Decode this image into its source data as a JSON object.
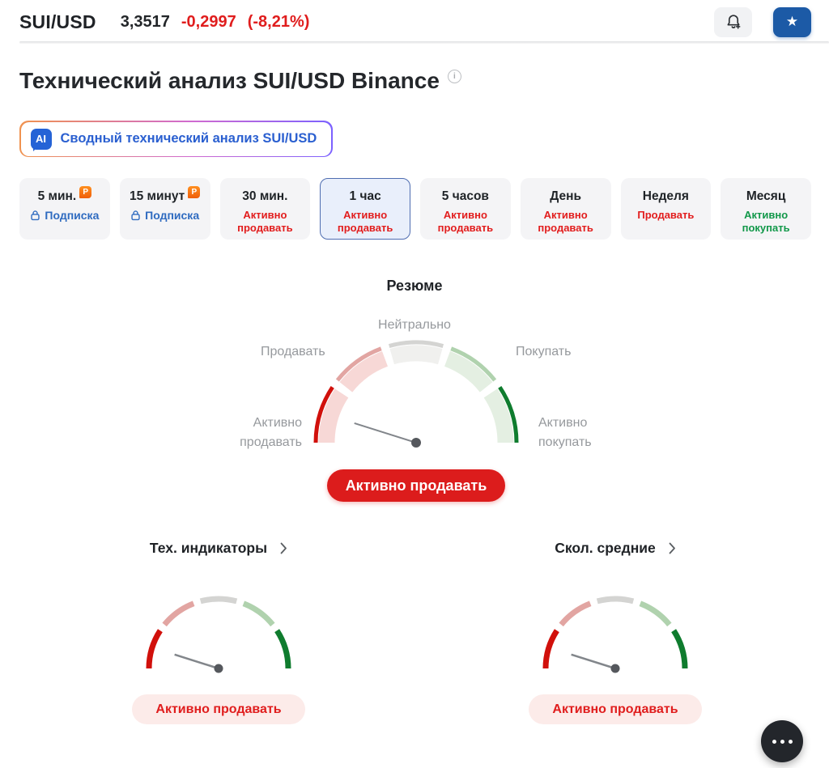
{
  "header": {
    "symbol": "SUI/USD",
    "price": "3,3517",
    "change": "-0,2997",
    "change_pct": "(-8,21%)"
  },
  "page": {
    "title": "Технический анализ SUI/USD Binance"
  },
  "ai_button": {
    "badge": "AI",
    "label": "Сводный технический анализ SUI/USD"
  },
  "tabs": [
    {
      "label": "5 мин.",
      "pro": true,
      "sub": "Подписка",
      "sub_type": "subscription"
    },
    {
      "label": "15 минут",
      "pro": true,
      "sub": "Подписка",
      "sub_type": "subscription"
    },
    {
      "label": "30 мин.",
      "sub": "Активно продавать",
      "sub_type": "strong-sell"
    },
    {
      "label": "1 час",
      "sub": "Активно продавать",
      "sub_type": "strong-sell",
      "selected": true
    },
    {
      "label": "5 часов",
      "sub": "Активно продавать",
      "sub_type": "strong-sell"
    },
    {
      "label": "День",
      "sub": "Активно продавать",
      "sub_type": "strong-sell"
    },
    {
      "label": "Неделя",
      "sub": "Продавать",
      "sub_type": "sell"
    },
    {
      "label": "Месяц",
      "sub": "Активно покупать",
      "sub_type": "strong-buy"
    }
  ],
  "summary": {
    "heading": "Резюме",
    "labels": {
      "top": "Нейтрально",
      "left": "Продавать",
      "right": "Покупать",
      "bottom_left": "Активно продавать",
      "bottom_right": "Активно покупать"
    },
    "signal": "Активно продавать",
    "needle_deg": 197.5
  },
  "sections": [
    {
      "heading": "Тех. индикаторы",
      "signal": "Активно продавать",
      "needle_deg": 197.5
    },
    {
      "heading": "Скол. средние",
      "signal": "Активно продавать",
      "needle_deg": 197.5
    }
  ],
  "icons": {
    "info": "i",
    "star": "★",
    "pro": "P"
  },
  "colors": {
    "negative": "#e01d1d",
    "positive": "#12984a",
    "link_blue": "#2f6bc0",
    "accent_blue": "#1c5aa6",
    "gauge_edges": [
      "#d1100b",
      "#e2a5a2",
      "#d4d4d2",
      "#b0d2ae",
      "#0f7c2e"
    ],
    "gauge_bands": [
      "#f7d8d6",
      "#f7d8d6",
      "#f0f0ee",
      "#e4efe2",
      "#e4efe2"
    ],
    "needle": "#82868b",
    "pivot": "#55585d"
  }
}
